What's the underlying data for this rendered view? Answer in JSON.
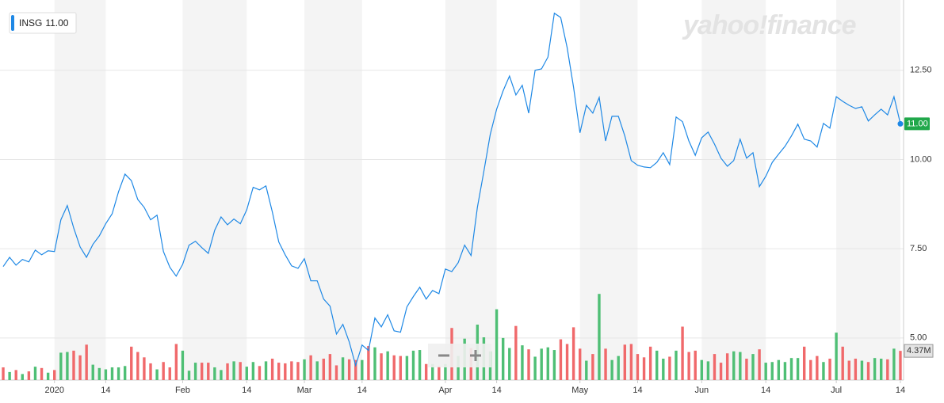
{
  "chart_data": {
    "type": "line",
    "watermark": "yahoo!finance",
    "categories": [
      null,
      null,
      null,
      null,
      null,
      null,
      null,
      null,
      "2020",
      null,
      null,
      null,
      null,
      null,
      null,
      null,
      "14",
      null,
      null,
      null,
      null,
      null,
      null,
      null,
      null,
      null,
      null,
      null,
      "Feb",
      null,
      null,
      null,
      null,
      null,
      null,
      null,
      null,
      null,
      "14",
      null,
      null,
      null,
      null,
      null,
      null,
      null,
      null,
      "Mar",
      null,
      null,
      null,
      null,
      null,
      null,
      null,
      null,
      "14",
      null,
      null,
      null,
      null,
      null,
      null,
      null,
      null,
      null,
      null,
      null,
      null,
      "Apr",
      null,
      null,
      null,
      null,
      null,
      null,
      null,
      "14",
      null,
      null,
      null,
      null,
      null,
      null,
      null,
      null,
      null,
      null,
      null,
      null,
      "May",
      null,
      null,
      null,
      null,
      null,
      null,
      null,
      null,
      "14",
      null,
      null,
      null,
      null,
      null,
      null,
      null,
      null,
      null,
      "Jun",
      null,
      null,
      null,
      null,
      null,
      null,
      null,
      null,
      null,
      "14",
      null,
      null,
      null,
      null,
      null,
      null,
      null,
      null,
      null,
      null,
      "Jul",
      null,
      null,
      null,
      null,
      null,
      null,
      null,
      null,
      null,
      "14"
    ],
    "series": [
      {
        "name": "INSG",
        "color": "#1e88e5",
        "values": [
          7.0,
          7.26,
          7.04,
          7.2,
          7.13,
          7.46,
          7.33,
          7.44,
          7.42,
          8.31,
          8.71,
          8.08,
          7.55,
          7.26,
          7.62,
          7.86,
          8.2,
          8.48,
          9.1,
          9.59,
          9.41,
          8.88,
          8.66,
          8.31,
          8.44,
          7.42,
          6.98,
          6.73,
          7.06,
          7.6,
          7.71,
          7.53,
          7.37,
          8.02,
          8.39,
          8.17,
          8.33,
          8.2,
          8.59,
          9.22,
          9.15,
          9.26,
          8.53,
          7.69,
          7.33,
          7.02,
          6.95,
          7.22,
          6.6,
          6.6,
          6.09,
          5.89,
          5.11,
          5.38,
          4.89,
          4.23,
          4.8,
          4.65,
          5.56,
          5.31,
          5.65,
          5.2,
          5.16,
          5.87,
          6.16,
          6.42,
          6.09,
          6.33,
          6.24,
          6.93,
          6.86,
          7.11,
          7.6,
          7.31,
          8.66,
          9.66,
          10.7,
          11.41,
          11.92,
          12.34,
          11.81,
          12.08,
          11.3,
          12.5,
          12.54,
          12.87,
          14.1,
          13.98,
          13.14,
          12.03,
          10.75,
          11.52,
          11.3,
          11.74,
          10.52,
          11.21,
          11.21,
          10.66,
          9.97,
          9.84,
          9.79,
          9.77,
          9.92,
          10.19,
          9.86,
          11.19,
          11.06,
          10.52,
          10.12,
          10.61,
          10.77,
          10.43,
          10.04,
          9.81,
          9.97,
          10.57,
          10.04,
          10.19,
          9.24,
          9.53,
          9.92,
          10.15,
          10.37,
          10.66,
          10.99,
          10.57,
          10.52,
          10.35,
          11.01,
          10.88,
          11.76,
          11.63,
          11.52,
          11.43,
          11.48,
          11.08,
          11.25,
          11.41,
          11.25,
          11.76,
          11
        ],
        "value_labels": [
          null,
          null,
          null,
          null,
          null,
          null,
          null,
          null,
          null,
          null,
          null,
          null,
          null,
          null,
          null,
          null,
          null,
          null,
          null,
          null,
          null,
          null,
          null,
          null,
          null,
          null,
          null,
          null,
          null,
          null,
          null,
          null,
          null,
          null,
          null,
          null,
          null,
          null,
          null,
          null,
          null,
          null,
          null,
          null,
          null,
          null,
          null,
          null,
          null,
          null,
          null,
          null,
          null,
          null,
          null,
          null,
          null,
          null,
          null,
          null,
          null,
          null,
          null,
          null,
          null,
          null,
          null,
          null,
          null,
          null,
          null,
          null,
          null,
          null,
          null,
          null,
          null,
          null,
          null,
          null,
          null,
          null,
          null,
          null,
          null,
          null,
          null,
          null,
          null,
          null,
          null,
          null,
          null,
          null,
          null,
          null,
          null,
          null,
          null,
          null,
          null,
          null,
          null,
          null,
          null,
          null,
          null,
          null,
          null,
          null,
          null,
          null,
          null,
          null,
          null,
          null,
          null,
          null,
          null,
          null,
          null,
          null,
          null,
          null,
          null,
          null,
          null,
          null,
          null,
          null,
          null,
          null,
          null,
          null,
          null,
          null,
          null,
          null,
          null,
          null,
          "11.00"
        ]
      },
      {
        "type": "bar",
        "axis": "y2",
        "up_color": "#4fbf75",
        "down_color": "#f0696b",
        "values": [
          1.9,
          1.2,
          1.5,
          0.9,
          1.3,
          2.0,
          1.8,
          1.1,
          1.5,
          4.1,
          4.2,
          4.4,
          3.7,
          5.3,
          2.3,
          1.8,
          1.6,
          1.9,
          1.9,
          2.1,
          5.0,
          4.2,
          3.4,
          2.5,
          1.6,
          2.7,
          1.9,
          5.4,
          4.4,
          1.4,
          2.6,
          2.6,
          2.6,
          1.9,
          1.5,
          2.5,
          2.8,
          2.7,
          2.0,
          2.7,
          2.1,
          2.8,
          3.2,
          2.6,
          2.5,
          2.8,
          2.7,
          3.1,
          3.7,
          2.8,
          3.2,
          3.9,
          2.2,
          3.4,
          3.1,
          3.0,
          3.0,
          5.1,
          4.9,
          4.0,
          4.3,
          3.7,
          3.6,
          3.6,
          4.4,
          4.5,
          2.4,
          2.4,
          2.1,
          2.4,
          7.8,
          3.6,
          6.2,
          4.8,
          8.3,
          6.4,
          4.3,
          10.6,
          6.3,
          4.8,
          8.1,
          5.2,
          4.6,
          3.5,
          4.7,
          4.9,
          4.5,
          6.1,
          5.4,
          7.9,
          4.7,
          2.9,
          3.9,
          12.9,
          4.7,
          3.0,
          3.6,
          5.3,
          5.4,
          3.9,
          3.4,
          5.0,
          4.4,
          3.2,
          3.5,
          4.4,
          8.0,
          4.2,
          4.4,
          3.0,
          2.8,
          3.9,
          2.6,
          4.0,
          4.3,
          4.2,
          3.2,
          3.9,
          4.6,
          2.6,
          2.7,
          3.0,
          2.7,
          3.3,
          3.3,
          5.0,
          3.0,
          3.6,
          2.7,
          3.2,
          7.1,
          5.0,
          2.9,
          3.2,
          2.9,
          2.7,
          3.3,
          3.2,
          3.1,
          4.7,
          4.37
        ],
        "value_labels": [
          null,
          null,
          null,
          null,
          null,
          null,
          null,
          null,
          null,
          null,
          null,
          null,
          null,
          null,
          null,
          null,
          null,
          null,
          null,
          null,
          null,
          null,
          null,
          null,
          null,
          null,
          null,
          null,
          null,
          null,
          null,
          null,
          null,
          null,
          null,
          null,
          null,
          null,
          null,
          null,
          null,
          null,
          null,
          null,
          null,
          null,
          null,
          null,
          null,
          null,
          null,
          null,
          null,
          null,
          null,
          null,
          null,
          null,
          null,
          null,
          null,
          null,
          null,
          null,
          null,
          null,
          null,
          null,
          null,
          null,
          null,
          null,
          null,
          null,
          null,
          null,
          null,
          null,
          null,
          null,
          null,
          null,
          null,
          null,
          null,
          null,
          null,
          null,
          null,
          null,
          null,
          null,
          null,
          null,
          null,
          null,
          null,
          null,
          null,
          null,
          null,
          null,
          null,
          null,
          null,
          null,
          null,
          null,
          null,
          null,
          null,
          null,
          null,
          null,
          null,
          null,
          null,
          null,
          null,
          null,
          null,
          null,
          null,
          null,
          null,
          null,
          null,
          null,
          null,
          null,
          null,
          null,
          null,
          null,
          null,
          null,
          null,
          null,
          null,
          null,
          "4.37M"
        ]
      }
    ],
    "ylim": [
      3.82,
      14.47
    ],
    "yticks": [
      {
        "value": 5,
        "label": "5.00"
      },
      {
        "value": 7.5,
        "label": "7.50"
      },
      {
        "value": 10,
        "label": "10.00"
      },
      {
        "value": 12.5,
        "label": "12.50"
      }
    ],
    "y2lim": [
      0,
      16.6
    ],
    "grid": true
  }
}
